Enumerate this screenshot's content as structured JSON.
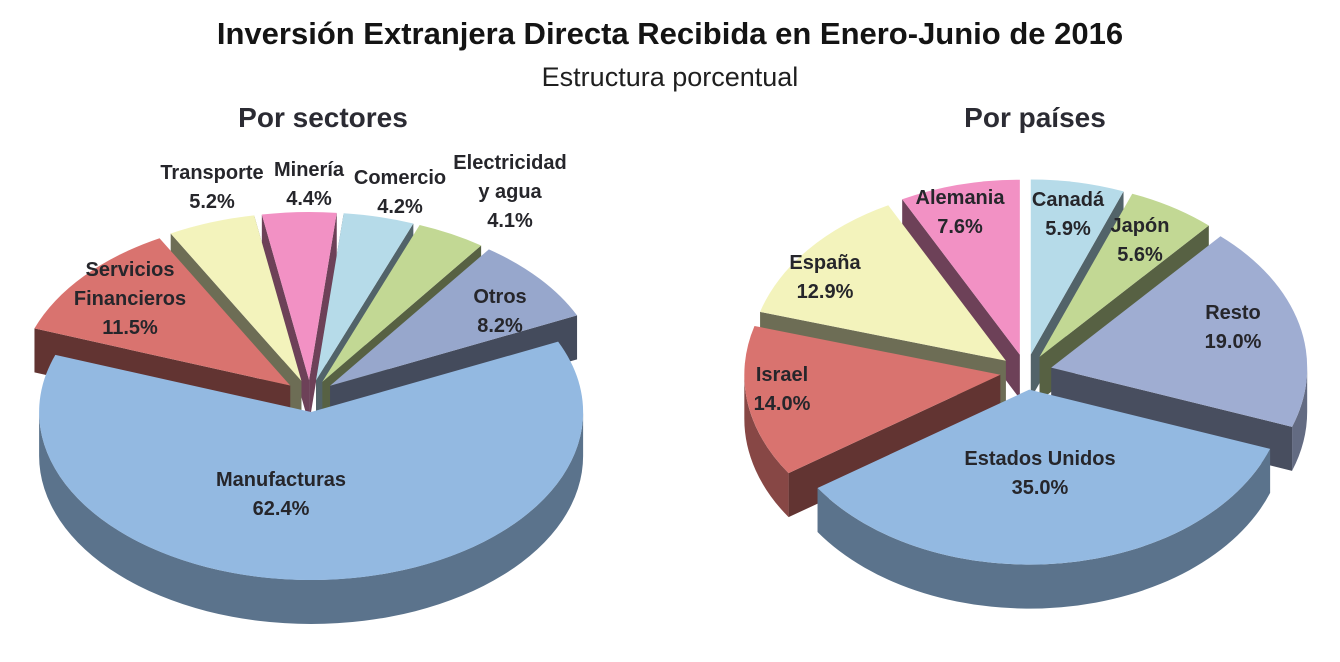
{
  "title": "Inversión Extranjera Directa Recibida en Enero-Junio de 2016",
  "subtitle": "Estructura porcentual",
  "background_color": "#ffffff",
  "text_color": "#26262b",
  "chart_data": [
    {
      "type": "pie",
      "title": "Por sectores",
      "unit": "%",
      "style": "3d-exploded-pie",
      "order": "clockwise",
      "start_angle_deg": -10,
      "legend": "none (labels on/above slices)",
      "slices": [
        {
          "name": "Minería",
          "value": 4.4,
          "label_lines": [
            "Minería",
            "4.4%"
          ],
          "color": "#f291c4"
        },
        {
          "name": "Comercio",
          "value": 4.2,
          "label_lines": [
            "Comercio",
            "4.2%"
          ],
          "color": "#b6dbe9"
        },
        {
          "name": "Electricidad y agua",
          "value": 4.1,
          "label_lines": [
            "Electricidad",
            "y agua",
            "4.1%"
          ],
          "color": "#c2d894"
        },
        {
          "name": "Otros",
          "value": 8.2,
          "label_lines": [
            "Otros",
            "8.2%"
          ],
          "color": "#97a7cc"
        },
        {
          "name": "Manufacturas",
          "value": 62.4,
          "label_lines": [
            "Manufacturas",
            "62.4%"
          ],
          "color": "#93b9e1"
        },
        {
          "name": "Servicios Financieros",
          "value": 11.5,
          "label_lines": [
            "Servicios",
            "Financieros",
            "11.5%"
          ],
          "color": "#d9736f"
        },
        {
          "name": "Transporte",
          "value": 5.2,
          "label_lines": [
            "Transporte",
            "5.2%"
          ],
          "color": "#f3f3bc"
        }
      ]
    },
    {
      "type": "pie",
      "title": "Por países",
      "unit": "%",
      "style": "3d-exploded-pie",
      "order": "clockwise",
      "start_angle_deg": 0,
      "legend": "none (labels on slices)",
      "slices": [
        {
          "name": "Canadá",
          "value": 5.9,
          "label_lines": [
            "Canadá",
            "5.9%"
          ],
          "color": "#b6dbe9"
        },
        {
          "name": "Japón",
          "value": 5.6,
          "label_lines": [
            "Japón",
            "5.6%"
          ],
          "color": "#c2d894"
        },
        {
          "name": "Resto",
          "value": 19.0,
          "label_lines": [
            "Resto",
            "19.0%"
          ],
          "color": "#9fadd2"
        },
        {
          "name": "Estados Unidos",
          "value": 35.0,
          "label_lines": [
            "Estados Unidos",
            "35.0%"
          ],
          "color": "#93b9e1"
        },
        {
          "name": "Israel",
          "value": 14.0,
          "label_lines": [
            "Israel",
            "14.0%"
          ],
          "color": "#d9736f"
        },
        {
          "name": "España",
          "value": 12.9,
          "label_lines": [
            "España",
            "12.9%"
          ],
          "color": "#f3f3bc"
        },
        {
          "name": "Alemania",
          "value": 7.6,
          "label_lines": [
            "Alemania",
            "7.6%"
          ],
          "color": "#f291c4"
        }
      ]
    }
  ]
}
